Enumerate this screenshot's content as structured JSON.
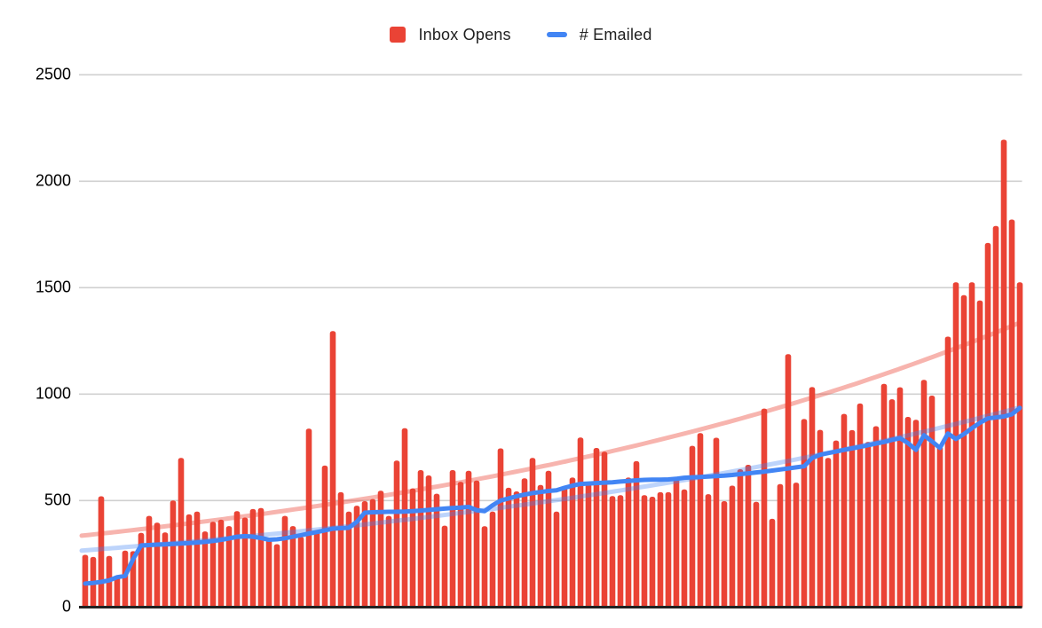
{
  "chart_data": {
    "type": "bar",
    "title": "",
    "legend_position": "top",
    "grid": true,
    "colors": {
      "bar": "#EA4335",
      "line": "#4285F4",
      "bar_trend": "rgba(234,67,53,0.40)",
      "line_trend": "rgba(66,133,244,0.35)",
      "gridline": "#d0d0d0",
      "axis": "#212121",
      "text": "#000000"
    },
    "legend": [
      {
        "label": "Inbox Opens",
        "marker": "square",
        "color": "#EA4335"
      },
      {
        "label": "# Emailed",
        "marker": "dash",
        "color": "#4285F4"
      }
    ],
    "y_axis": {
      "min": 0,
      "max": 2500,
      "tick_step": 500,
      "ticks": [
        "0",
        "500",
        "1000",
        "1500",
        "2000",
        "2500"
      ]
    },
    "x_axis": {
      "labels_visible": false,
      "points": 118
    },
    "series": [
      {
        "name": "Inbox Opens",
        "type": "bar",
        "color": "#EA4335",
        "values": [
          245,
          235,
          520,
          240,
          146,
          265,
          262,
          348,
          428,
          396,
          350,
          500,
          700,
          435,
          448,
          355,
          400,
          410,
          380,
          450,
          420,
          460,
          465,
          315,
          295,
          428,
          380,
          330,
          838,
          360,
          664,
          1296,
          539,
          448,
          476,
          497,
          507,
          546,
          428,
          688,
          840,
          557,
          643,
          618,
          532,
          382,
          643,
          588,
          640,
          594,
          379,
          448,
          745,
          560,
          543,
          604,
          700,
          573,
          640,
          448,
          560,
          608,
          796,
          588,
          747,
          729,
          521,
          525,
          608,
          685,
          525,
          518,
          539,
          539,
          604,
          552,
          757,
          817,
          530,
          795,
          497,
          570,
          647,
          668,
          494,
          932,
          414,
          577,
          1188,
          584,
          883,
          1033,
          832,
          700,
          782,
          907,
          831,
          956,
          775,
          849,
          1048,
          976,
          1032,
          893,
          879,
          1067,
          993,
          755,
          1270,
          1525,
          1465,
          1525,
          1440,
          1710,
          1790,
          2195,
          1820,
          1525
        ]
      },
      {
        "name": "# Emailed",
        "type": "line",
        "color": "#4285F4",
        "values": [
          110,
          113,
          118,
          125,
          140,
          146,
          225,
          289,
          291,
          293,
          294,
          296,
          298,
          300,
          303,
          306,
          310,
          315,
          322,
          330,
          333,
          330,
          324,
          316,
          318,
          323,
          330,
          337,
          345,
          352,
          360,
          368,
          370,
          372,
          400,
          443,
          445,
          446,
          447,
          447,
          448,
          450,
          453,
          456,
          459,
          462,
          465,
          467,
          470,
          455,
          450,
          478,
          500,
          510,
          520,
          528,
          535,
          540,
          545,
          548,
          560,
          570,
          578,
          580,
          582,
          584,
          586,
          589,
          592,
          595,
          597,
          598,
          598,
          599,
          602,
          607,
          609,
          611,
          613,
          615,
          617,
          620,
          624,
          628,
          632,
          636,
          641,
          646,
          651,
          656,
          661,
          700,
          715,
          723,
          730,
          738,
          745,
          752,
          760,
          768,
          775,
          785,
          793,
          770,
          738,
          807,
          778,
          747,
          815,
          789,
          812,
          840,
          865,
          886,
          890,
          895,
          905,
          935
        ]
      }
    ],
    "trendlines": [
      {
        "series": "Inbox Opens",
        "shape": "exponential",
        "color": "rgba(234,67,53,0.40)",
        "start": 335,
        "end": 1340
      },
      {
        "series": "# Emailed",
        "shape": "exponential",
        "color": "rgba(66,133,244,0.35)",
        "start": 265,
        "end": 940
      }
    ]
  }
}
